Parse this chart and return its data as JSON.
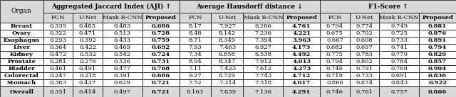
{
  "organs": [
    "Breast",
    "Ovary",
    "Esophagus",
    "Liver",
    "Kidney",
    "Prostate",
    "Bladder",
    "Colorectal",
    "Stomach",
    "Overall"
  ],
  "headers_top": [
    "Aggregated Jaccard Index (AJI) ↑",
    "Average Hausdorff distance ↓",
    "F1-Score ↑"
  ],
  "headers_sub": [
    "FCN",
    "U-Net",
    "Mask R-CNN",
    "Proposed"
  ],
  "aji": {
    "FCN": [
      0.339,
      0.322,
      0.293,
      0.364,
      0.472,
      0.281,
      0.461,
      0.247,
      0.383,
      0.351
    ],
    "U-Net": [
      0.485,
      0.471,
      0.392,
      0.422,
      0.532,
      0.276,
      0.491,
      0.218,
      0.437,
      0.414
    ],
    "Mask R-CNN": [
      0.483,
      0.513,
      0.433,
      0.469,
      0.542,
      0.536,
      0.477,
      0.391,
      0.629,
      0.497
    ],
    "Proposed": [
      0.686,
      0.728,
      0.759,
      0.692,
      0.724,
      0.731,
      0.768,
      0.686,
      0.721,
      0.721
    ]
  },
  "ahd": {
    "FCN": [
      8.17,
      8.48,
      8.71,
      7.93,
      7.34,
      8.94,
      7.11,
      9.27,
      7.52,
      8.163
    ],
    "U-Net": [
      7.927,
      8.142,
      8.349,
      7.463,
      6.858,
      8.347,
      7.423,
      8.729,
      7.314,
      7.839
    ],
    "Mask R-CNN": [
      6.286,
      7.236,
      7.394,
      6.927,
      6.538,
      7.912,
      7.612,
      7.743,
      7.518,
      7.136
    ],
    "Proposed": [
      4.761,
      4.221,
      3.963,
      4.173,
      4.492,
      4.013,
      4.273,
      4.712,
      4.017,
      4.291
    ]
  },
  "f1": {
    "FCN": [
      0.794,
      0.675,
      0.667,
      0.683,
      0.775,
      0.794,
      0.746,
      0.719,
      0.866,
      0.746
    ],
    "U-Net": [
      0.774,
      0.702,
      0.608,
      0.697,
      0.783,
      0.802,
      0.791,
      0.733,
      0.874,
      0.761
    ],
    "Mask R-CNN": [
      0.749,
      0.725,
      0.733,
      0.741,
      0.779,
      0.784,
      0.769,
      0.691,
      0.843,
      0.757
    ],
    "Proposed": [
      0.881,
      0.876,
      0.891,
      0.794,
      0.829,
      0.857,
      0.904,
      0.836,
      0.922,
      0.866
    ]
  },
  "ahd_fmt": {
    "FCN": [
      "8.17",
      "8.48",
      "8.71",
      "7.93",
      "7.34",
      "8.94",
      "7.11",
      "9.27",
      "7.52",
      "8.163"
    ],
    "U-Net": [
      "7.927",
      "8.142",
      "8.349",
      "7.463",
      "6.858",
      "8.347",
      "7.423",
      "8.729",
      "7.314",
      "7.839"
    ],
    "Mask R-CNN": [
      "6.286",
      "7.236",
      "7.394",
      "6.927",
      "6.538",
      "7.912",
      "7.612",
      "7.743",
      "7.518",
      "7.136"
    ],
    "Proposed": [
      "4.761",
      "4.221",
      "3.963",
      "4.173",
      "4.492",
      "4.013",
      "4.273",
      "4.712",
      "4.017",
      "4.291"
    ]
  },
  "bg_header": "#d9d9d9",
  "bg_overall": "#d9d9d9",
  "bg_white": "#ffffff",
  "text_color": "#000000",
  "font_size": 6.0,
  "header_font_size": 6.5
}
